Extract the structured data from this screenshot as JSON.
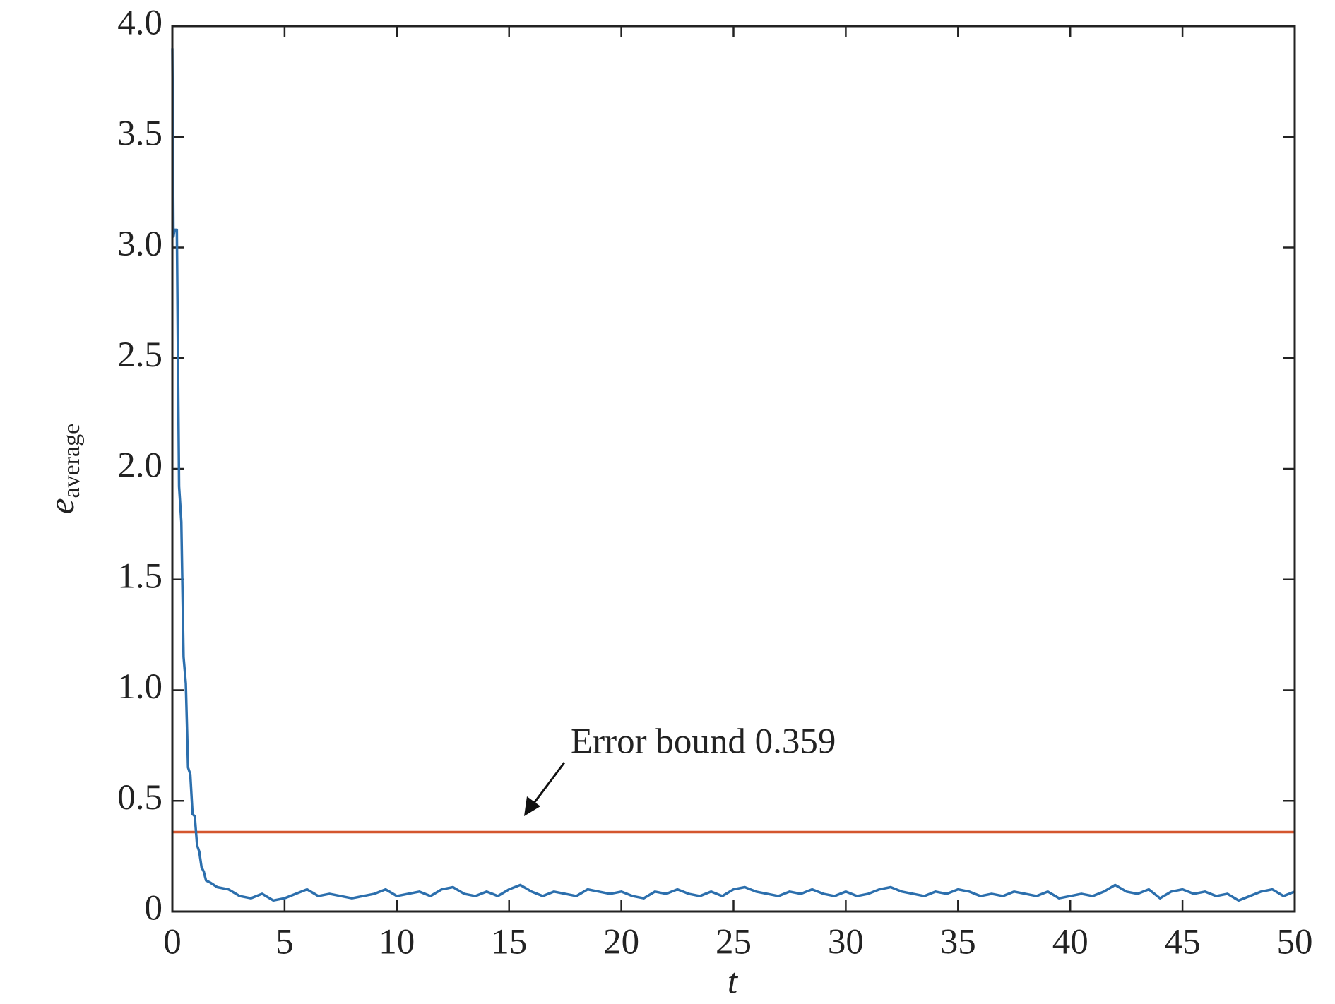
{
  "chart_data": {
    "type": "line",
    "xlabel": "t",
    "ylabel": {
      "text": "e",
      "subscript": "average"
    },
    "xlim": [
      0,
      50
    ],
    "ylim": [
      0,
      4
    ],
    "xticks": [
      0,
      5,
      10,
      15,
      20,
      25,
      30,
      35,
      40,
      45,
      50
    ],
    "yticks": [
      0,
      0.5,
      {
        "value": 1,
        "label": "1.0"
      },
      1.5,
      {
        "value": 2,
        "label": "2.0"
      },
      2.5,
      {
        "value": 3,
        "label": "3.0"
      },
      3.5,
      {
        "value": 4,
        "label": "4.0"
      }
    ],
    "x": [
      0,
      0.05,
      0.1,
      0.2,
      0.3,
      0.4,
      0.5,
      0.6,
      0.7,
      0.8,
      0.9,
      1,
      1.1,
      1.2,
      1.3,
      1.4,
      1.5,
      1.7,
      2,
      2.5,
      3,
      3.5,
      4,
      4.5,
      5,
      5.5,
      6,
      6.5,
      7,
      7.5,
      8,
      8.5,
      9,
      9.5,
      10,
      10.5,
      11,
      11.5,
      12,
      12.5,
      13,
      13.5,
      14,
      14.5,
      15,
      15.5,
      16,
      16.5,
      17,
      17.5,
      18,
      18.5,
      19,
      19.5,
      20,
      20.5,
      21,
      21.5,
      22,
      22.5,
      23,
      23.5,
      24,
      24.5,
      25,
      25.5,
      26,
      26.5,
      27,
      27.5,
      28,
      28.5,
      29,
      29.5,
      30,
      30.5,
      31,
      31.5,
      32,
      32.5,
      33,
      33.5,
      34,
      34.5,
      35,
      35.5,
      36,
      36.5,
      37,
      37.5,
      38,
      38.5,
      39,
      39.5,
      40,
      40.5,
      41,
      41.5,
      42,
      42.5,
      43,
      43.5,
      44,
      44.5,
      45,
      45.5,
      46,
      46.5,
      47,
      47.5,
      48,
      48.5,
      49,
      49.5,
      50
    ],
    "series": [
      {
        "color": "#2c6fad",
        "values": [
          3.9,
          3.05,
          3.08,
          3.08,
          1.92,
          1.76,
          1.15,
          1.03,
          0.65,
          0.62,
          0.44,
          0.43,
          0.3,
          0.27,
          0.2,
          0.18,
          0.14,
          0.13,
          0.11,
          0.1,
          0.07,
          0.06,
          0.08,
          0.05,
          0.06,
          0.08,
          0.1,
          0.07,
          0.08,
          0.07,
          0.06,
          0.07,
          0.08,
          0.1,
          0.07,
          0.08,
          0.09,
          0.07,
          0.1,
          0.11,
          0.08,
          0.07,
          0.09,
          0.07,
          0.1,
          0.12,
          0.09,
          0.07,
          0.09,
          0.08,
          0.07,
          0.1,
          0.09,
          0.08,
          0.09,
          0.07,
          0.06,
          0.09,
          0.08,
          0.1,
          0.08,
          0.07,
          0.09,
          0.07,
          0.1,
          0.11,
          0.09,
          0.08,
          0.07,
          0.09,
          0.08,
          0.1,
          0.08,
          0.07,
          0.09,
          0.07,
          0.08,
          0.1,
          0.11,
          0.09,
          0.08,
          0.07,
          0.09,
          0.08,
          0.1,
          0.09,
          0.07,
          0.08,
          0.07,
          0.09,
          0.08,
          0.07,
          0.09,
          0.06,
          0.07,
          0.08,
          0.07,
          0.09,
          0.12,
          0.09,
          0.08,
          0.1,
          0.06,
          0.09,
          0.1,
          0.08,
          0.09,
          0.07,
          0.08,
          0.05,
          0.07,
          0.09,
          0.1,
          0.07,
          0.09
        ]
      }
    ],
    "reference_line": {
      "value": 0.359,
      "color": "#d4562e",
      "label": "Error bound 0.359"
    }
  }
}
